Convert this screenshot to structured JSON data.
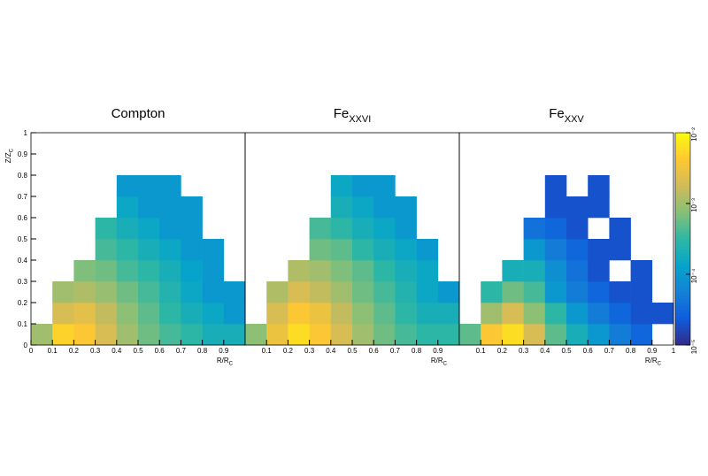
{
  "chart_data": [
    {
      "type": "heatmap",
      "title": "Compton",
      "xlabel": "R/R",
      "xlabel_subscript": "C",
      "ylabel": "Z/Z",
      "ylabel_subscript": "C",
      "xlim": [
        0,
        1
      ],
      "ylim": [
        0,
        1
      ],
      "xticks": [
        0,
        0.1,
        0.2,
        0.3,
        0.4,
        0.5,
        0.6,
        0.7,
        0.8,
        0.9
      ],
      "yticks": [
        0,
        0.1,
        0.2,
        0.3,
        0.4,
        0.5,
        0.6,
        0.7,
        0.8,
        0.9,
        1
      ],
      "x_bins": [
        0,
        0.1,
        0.2,
        0.3,
        0.4,
        0.5,
        0.6,
        0.7,
        0.8,
        0.9,
        1
      ],
      "y_bins": [
        0,
        0.1,
        0.2,
        0.3,
        0.4,
        0.5,
        0.6,
        0.7,
        0.8
      ],
      "zlim": [
        1e-05,
        0.01
      ],
      "zscale": "log",
      "colormap": [
        "#352a87",
        "#0f5cdd",
        "#1481d6",
        "#06a4ca",
        "#2eb7a4",
        "#87bf77",
        "#d1bb59",
        "#fec832",
        "#f9fb0e"
      ],
      "z": [
        [
          0.001,
          0.005,
          0.004,
          0.002,
          0.001,
          0.0006,
          0.0004,
          0.0003,
          0.0002,
          0.0002
        ],
        [
          null,
          0.002,
          0.0025,
          0.0015,
          0.0008,
          0.0005,
          0.0003,
          0.0002,
          0.00015,
          0.0001
        ],
        [
          null,
          0.001,
          0.0012,
          0.0009,
          0.0006,
          0.0004,
          0.00025,
          0.00015,
          0.0001,
          0.0001
        ],
        [
          null,
          null,
          0.0007,
          0.0006,
          0.0004,
          0.0003,
          0.0002,
          0.00013,
          0.0001,
          null
        ],
        [
          null,
          null,
          null,
          0.0004,
          0.0003,
          0.0002,
          0.00015,
          0.0001,
          0.0001,
          null
        ],
        [
          null,
          null,
          null,
          0.0003,
          0.0002,
          0.00015,
          0.0001,
          0.0001,
          null,
          null
        ],
        [
          null,
          null,
          null,
          null,
          0.00015,
          0.0001,
          0.0001,
          0.0001,
          null,
          null
        ],
        [
          null,
          null,
          null,
          null,
          0.0001,
          0.0001,
          0.0001,
          null,
          null,
          null
        ]
      ]
    },
    {
      "type": "heatmap",
      "title": "Fe",
      "title_subscript": "XXVI",
      "xlabel": "R/R",
      "xlabel_subscript": "C",
      "xlim": [
        0,
        1
      ],
      "ylim": [
        0,
        1
      ],
      "xticks": [
        0.1,
        0.2,
        0.3,
        0.4,
        0.5,
        0.6,
        0.7,
        0.8,
        0.9
      ],
      "x_bins": [
        0,
        0.1,
        0.2,
        0.3,
        0.4,
        0.5,
        0.6,
        0.7,
        0.8,
        0.9,
        1
      ],
      "y_bins": [
        0,
        0.1,
        0.2,
        0.3,
        0.4,
        0.5,
        0.6,
        0.7,
        0.8
      ],
      "zlim": [
        1e-05,
        0.01
      ],
      "zscale": "log",
      "colormap": [
        "#352a87",
        "#0f5cdd",
        "#1481d6",
        "#06a4ca",
        "#2eb7a4",
        "#87bf77",
        "#d1bb59",
        "#fec832",
        "#f9fb0e"
      ],
      "z": [
        [
          0.0008,
          0.003,
          0.006,
          0.004,
          0.002,
          0.001,
          0.0006,
          0.0004,
          0.0003,
          0.0003
        ],
        [
          null,
          0.002,
          0.004,
          0.003,
          0.0015,
          0.0008,
          0.0005,
          0.0003,
          0.0002,
          0.0002
        ],
        [
          null,
          0.0012,
          0.002,
          0.0015,
          0.001,
          0.0006,
          0.0004,
          0.00025,
          0.00015,
          0.0001
        ],
        [
          null,
          null,
          0.0012,
          0.001,
          0.0007,
          0.0005,
          0.0003,
          0.0002,
          0.00015,
          null
        ],
        [
          null,
          null,
          null,
          0.0006,
          0.0005,
          0.0003,
          0.0002,
          0.00015,
          0.0001,
          null
        ],
        [
          null,
          null,
          null,
          0.0004,
          0.0003,
          0.0002,
          0.00015,
          0.0001,
          null,
          null
        ],
        [
          null,
          null,
          null,
          null,
          0.0002,
          0.00015,
          0.0001,
          0.0001,
          null,
          null
        ],
        [
          null,
          null,
          null,
          null,
          0.00015,
          0.0001,
          0.0001,
          null,
          null,
          null
        ]
      ]
    },
    {
      "type": "heatmap",
      "title": "Fe",
      "title_subscript": "XXV",
      "xlabel": "R/R",
      "xlabel_subscript": "C",
      "xlim": [
        0,
        1
      ],
      "ylim": [
        0,
        1
      ],
      "xticks": [
        0.1,
        0.2,
        0.3,
        0.4,
        0.5,
        0.6,
        0.7,
        0.8,
        0.9,
        1
      ],
      "x_bins": [
        0,
        0.1,
        0.2,
        0.3,
        0.4,
        0.5,
        0.6,
        0.7,
        0.8,
        0.9,
        1
      ],
      "y_bins": [
        0,
        0.1,
        0.2,
        0.3,
        0.4,
        0.5,
        0.6,
        0.7,
        0.8
      ],
      "zlim": [
        1e-05,
        0.01
      ],
      "zscale": "log",
      "colorbar": true,
      "zticks": [
        {
          "value": 1e-05,
          "label": "10⁻⁵"
        },
        {
          "value": 0.0001,
          "label": "10⁻⁴"
        },
        {
          "value": 0.001,
          "label": "10⁻³"
        },
        {
          "value": 0.01,
          "label": "10⁻²"
        }
      ],
      "colormap": [
        "#352a87",
        "#0f5cdd",
        "#1481d6",
        "#06a4ca",
        "#2eb7a4",
        "#87bf77",
        "#d1bb59",
        "#fec832",
        "#f9fb0e"
      ],
      "z": [
        [
          0.0005,
          0.004,
          0.006,
          0.002,
          0.0005,
          0.0002,
          0.0001,
          5e-05,
          3e-05,
          null
        ],
        [
          null,
          0.001,
          0.002,
          0.0008,
          0.0003,
          0.0001,
          5e-05,
          3e-05,
          2e-05,
          2e-05
        ],
        [
          null,
          0.0003,
          0.0006,
          0.0004,
          0.0001,
          5e-05,
          3e-05,
          2e-05,
          2e-05,
          null
        ],
        [
          null,
          null,
          0.0002,
          0.0002,
          8e-05,
          4e-05,
          2e-05,
          null,
          2e-05,
          null
        ],
        [
          null,
          null,
          null,
          0.0001,
          5e-05,
          3e-05,
          2e-05,
          2e-05,
          null,
          null
        ],
        [
          null,
          null,
          null,
          4e-05,
          3e-05,
          2e-05,
          null,
          2e-05,
          null,
          null
        ],
        [
          null,
          null,
          null,
          null,
          2e-05,
          2e-05,
          2e-05,
          null,
          null,
          null
        ],
        [
          null,
          null,
          null,
          null,
          2e-05,
          null,
          2e-05,
          null,
          null,
          null
        ]
      ]
    }
  ]
}
